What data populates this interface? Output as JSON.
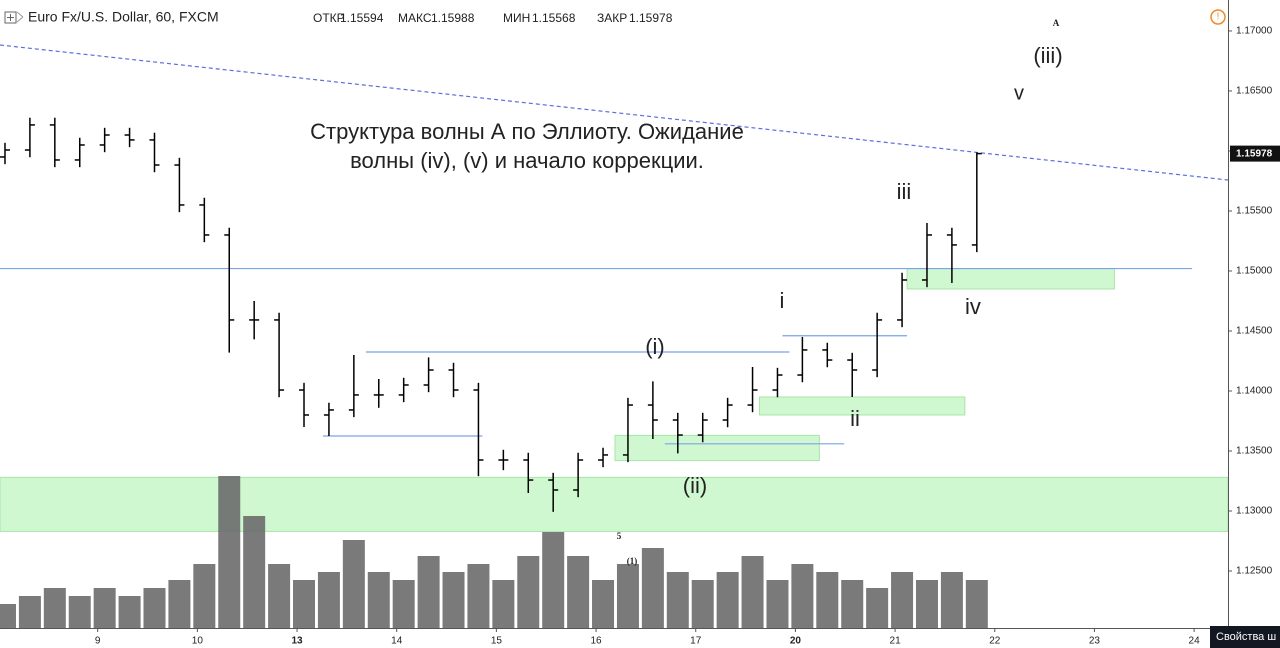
{
  "chart_data": {
    "type": "candlestick",
    "title": "Euro Fx/U.S. Dollar, 60, FXCM",
    "header": [
      {
        "label": "ОТКР",
        "value": 1.15594
      },
      {
        "label": "МАКС",
        "value": 1.15988
      },
      {
        "label": "МИН",
        "value": 1.15568
      },
      {
        "label": "ЗАКР",
        "value": 1.15978
      }
    ],
    "candle_color": "#000000",
    "volume_color": "#6b6b6b",
    "x": [
      -0.93,
      -0.68,
      -0.43,
      -0.18,
      0.07,
      0.32,
      0.57,
      0.82,
      1.07,
      1.32,
      1.57,
      1.82,
      2.07,
      2.32,
      2.57,
      2.82,
      3.07,
      3.32,
      3.57,
      3.82,
      4.07,
      4.32,
      4.57,
      4.82,
      5.07,
      5.32,
      5.57,
      5.82,
      6.07,
      6.32,
      6.57,
      6.82,
      7.07,
      7.32,
      7.57,
      7.82,
      8.07,
      8.32,
      8.57,
      8.82
    ],
    "open": [
      1.1595,
      1.16008,
      1.16217,
      1.15925,
      1.1605,
      1.16133,
      1.16092,
      1.15883,
      1.1555,
      1.153,
      1.14592,
      1.14592,
      1.14008,
      1.138,
      1.13842,
      1.13967,
      1.13967,
      1.1405,
      1.14175,
      1.14008,
      1.13425,
      1.13425,
      1.13258,
      1.13175,
      1.13425,
      1.13467,
      1.13883,
      1.13758,
      1.13633,
      1.13758,
      1.13883,
      1.14008,
      1.14133,
      1.14342,
      1.14258,
      1.14175,
      1.14592,
      1.14925,
      1.153,
      1.15217
    ],
    "high": [
      1.16068,
      1.16277,
      1.16277,
      1.1611,
      1.16193,
      1.16193,
      1.16152,
      1.15943,
      1.1561,
      1.1536,
      1.1475,
      1.14652,
      1.14068,
      1.13902,
      1.143,
      1.141,
      1.1411,
      1.1428,
      1.14235,
      1.14068,
      1.1351,
      1.13485,
      1.13318,
      1.13485,
      1.13527,
      1.13943,
      1.1408,
      1.13818,
      1.13818,
      1.13943,
      1.142,
      1.14193,
      1.1445,
      1.14402,
      1.14318,
      1.14652,
      1.14985,
      1.154,
      1.1536,
      1.15988
    ],
    "low": [
      1.1589,
      1.15948,
      1.15865,
      1.15865,
      1.1599,
      1.16032,
      1.15823,
      1.1549,
      1.1524,
      1.1432,
      1.1443,
      1.13948,
      1.137,
      1.13625,
      1.13782,
      1.1386,
      1.13907,
      1.1399,
      1.13948,
      1.1329,
      1.1334,
      1.1315,
      1.12993,
      1.13115,
      1.13365,
      1.13407,
      1.136,
      1.1348,
      1.13573,
      1.13698,
      1.13823,
      1.13948,
      1.14073,
      1.14198,
      1.1395,
      1.14115,
      1.14532,
      1.14865,
      1.149,
      1.15157
    ],
    "close": [
      1.16008,
      1.16217,
      1.15925,
      1.1605,
      1.16133,
      1.16092,
      1.15883,
      1.1555,
      1.153,
      1.14592,
      1.14592,
      1.14008,
      1.138,
      1.13842,
      1.13967,
      1.13967,
      1.1405,
      1.14175,
      1.14008,
      1.13425,
      1.13425,
      1.13258,
      1.13175,
      1.13425,
      1.13467,
      1.13883,
      1.13758,
      1.13633,
      1.13758,
      1.13883,
      1.14008,
      1.14133,
      1.14342,
      1.14258,
      1.14175,
      1.14592,
      1.14925,
      1.153,
      1.15217,
      1.15978
    ],
    "volume": [
      15,
      20,
      25,
      20,
      25,
      20,
      25,
      30,
      40,
      95,
      70,
      40,
      30,
      35,
      55,
      35,
      30,
      45,
      35,
      40,
      30,
      45,
      60,
      45,
      30,
      40,
      50,
      35,
      30,
      35,
      45,
      30,
      40,
      35,
      30,
      25,
      35,
      30,
      35,
      30
    ],
    "xlim": [
      -0.98,
      11.34
    ],
    "xticks": [
      {
        "value": 0,
        "label": "9"
      },
      {
        "value": 1,
        "label": "10"
      },
      {
        "value": 2,
        "label": "13"
      },
      {
        "value": 3,
        "label": "14"
      },
      {
        "value": 4,
        "label": "15"
      },
      {
        "value": 5,
        "label": "16"
      },
      {
        "value": 6,
        "label": "17"
      },
      {
        "value": 7,
        "label": "20"
      },
      {
        "value": 8,
        "label": "21"
      },
      {
        "value": 9,
        "label": "22"
      },
      {
        "value": 10,
        "label": "23"
      },
      {
        "value": 11,
        "label": "24"
      }
    ],
    "ylim": [
      1.12025,
      1.17258
    ],
    "yticks": [
      {
        "value": 1.125,
        "label": "1.12500"
      },
      {
        "value": 1.13,
        "label": "1.13000"
      },
      {
        "value": 1.135,
        "label": "1.13500"
      },
      {
        "value": 1.14,
        "label": "1.14000"
      },
      {
        "value": 1.145,
        "label": "1.14500"
      },
      {
        "value": 1.15,
        "label": "1.15000"
      },
      {
        "value": 1.155,
        "label": "1.15500"
      },
      {
        "value": 1.16,
        "label": "1.16000"
      },
      {
        "value": 1.165,
        "label": "1.16500"
      },
      {
        "value": 1.17,
        "label": "1.17000"
      }
    ],
    "last_price": 1.15978,
    "levels": [
      {
        "price": 1.1502,
        "x": [
          -0.98,
          10.98
        ]
      },
      {
        "price": 1.14325,
        "x": [
          2.69,
          6.94
        ]
      },
      {
        "price": 1.13625,
        "x": [
          2.26,
          3.86
        ]
      },
      {
        "price": 1.1356,
        "x": [
          5.69,
          7.49
        ]
      },
      {
        "price": 1.1446,
        "x": [
          6.87,
          8.12
        ]
      }
    ],
    "zones": [
      {
        "price": [
          1.1283,
          1.1328
        ],
        "x": [
          -0.98,
          11.34
        ]
      },
      {
        "price": [
          1.1342,
          1.1363
        ],
        "x": [
          5.19,
          7.24
        ]
      },
      {
        "price": [
          1.138,
          1.1395
        ],
        "x": [
          6.64,
          8.7
        ]
      },
      {
        "price": [
          1.1485,
          1.1502
        ],
        "x": [
          8.12,
          10.2
        ]
      }
    ],
    "trendline": {
      "x": [
        -0.98,
        11.34
      ],
      "y": [
        1.16883,
        1.15758
      ]
    },
    "annotations": [
      "Структура волны А по Эллиоту. Ожидание",
      "волны (iv), (v) и начало коррекции.",
      "(iii)",
      "v",
      "A",
      "iii",
      "iv",
      "i",
      "ii",
      "(i)",
      "(ii)",
      "5",
      "(1)"
    ],
    "button": "Свойства ш"
  }
}
